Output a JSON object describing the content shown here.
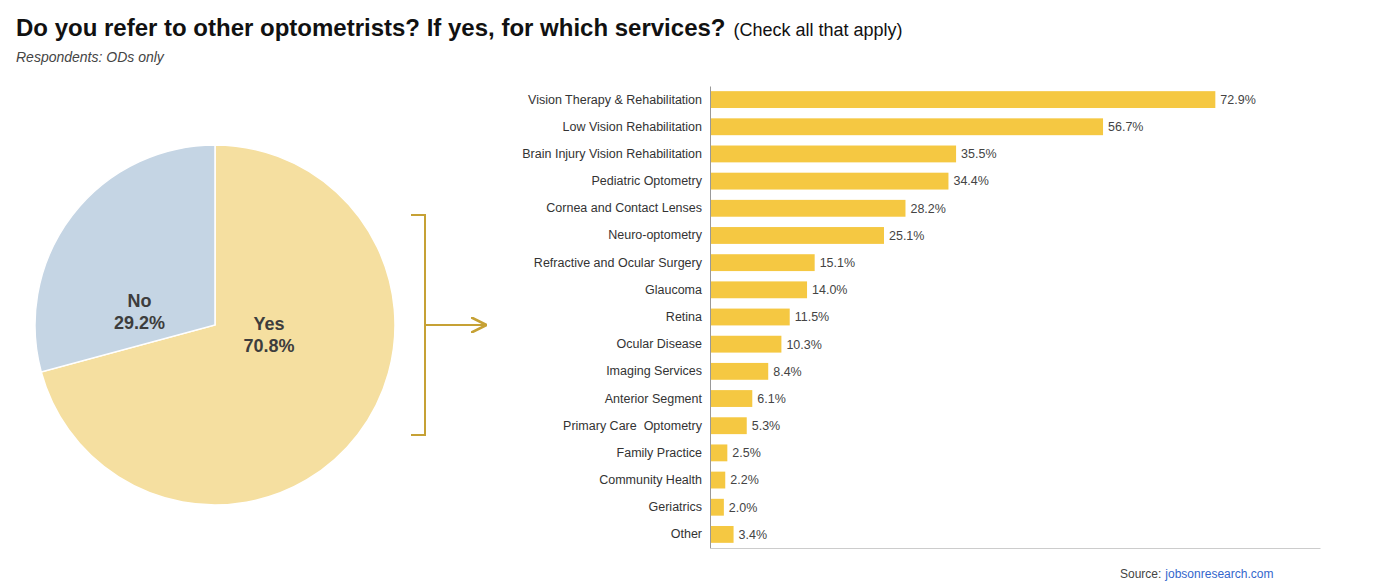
{
  "chart_data": [
    {
      "type": "pie",
      "title": "Do you refer to other optometrists? If yes, for which services?",
      "subtitle": "Respondents: ODs only",
      "annotations": [
        "(Check all that apply)"
      ],
      "categories": [
        "Yes",
        "No"
      ],
      "values": [
        70.8,
        29.2
      ],
      "value_labels": [
        "70.8%",
        "29.2%"
      ],
      "colors": [
        "#F5DFA0",
        "#C5D5E4"
      ],
      "data_labels": true
    },
    {
      "type": "bar",
      "orientation": "horizontal",
      "categories": [
        "Vision Therapy & Rehabilitation",
        "Low Vision Rehabilitation",
        "Brain Injury Vision Rehabilitation",
        "Pediatric Optometry",
        "Cornea and Contact Lenses",
        "Neuro-optometry",
        "Refractive and Ocular Surgery",
        "Glaucoma",
        "Retina",
        "Ocular Disease",
        "Imaging Services",
        "Anterior Segment",
        "Primary Care  Optometry",
        "Family Practice",
        "Community Health",
        "Geriatrics",
        "Other"
      ],
      "values": [
        72.9,
        56.7,
        35.5,
        34.4,
        28.2,
        25.1,
        15.1,
        14.0,
        11.5,
        10.3,
        8.4,
        6.1,
        5.3,
        2.5,
        2.2,
        2.0,
        3.4
      ],
      "value_labels": [
        "72.9%",
        "56.7%",
        "35.5%",
        "34.4%",
        "28.2%",
        "25.1%",
        "15.1%",
        "14.0%",
        "11.5%",
        "10.3%",
        "8.4%",
        "6.1%",
        "5.3%",
        "2.5%",
        "2.2%",
        "2.0%",
        "3.4%"
      ],
      "color": "#F5C842",
      "xlim": [
        0,
        88
      ],
      "tick_labels": "y",
      "data_labels": true,
      "annotations": [
        "Source:",
        "jobsonresearch.com"
      ]
    }
  ]
}
